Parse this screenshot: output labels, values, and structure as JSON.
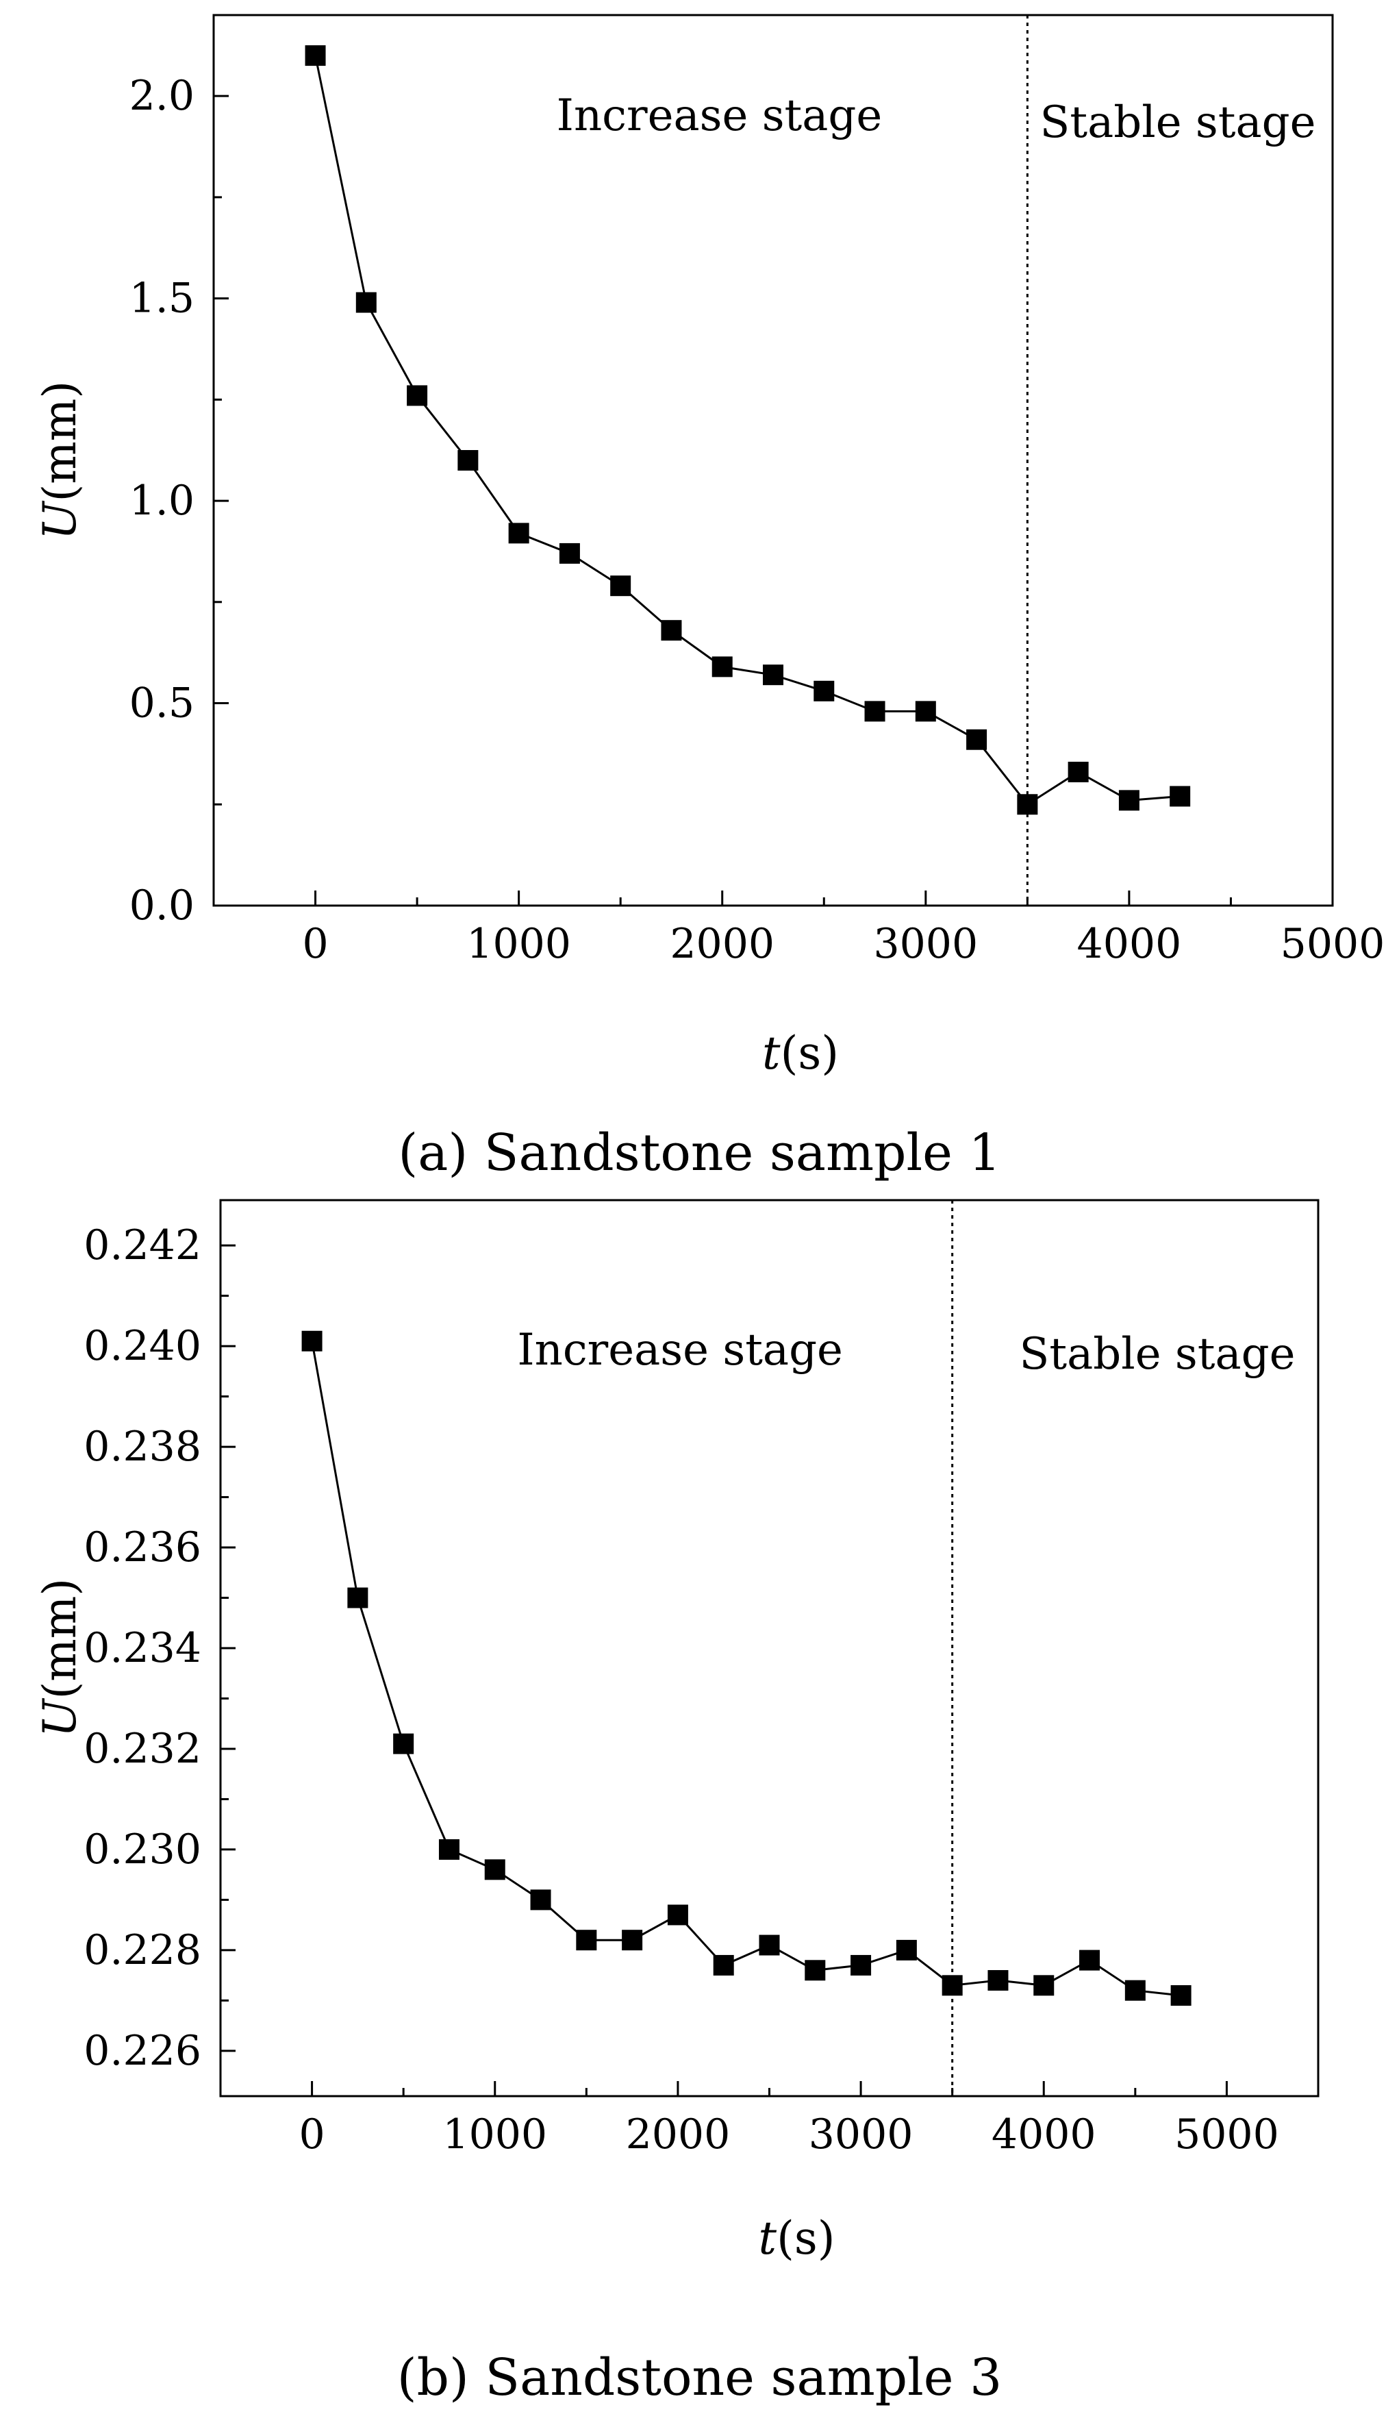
{
  "chart_data": [
    {
      "type": "line",
      "marker": "square",
      "caption": "(a) Sandstone sample 1",
      "xlabel": "t(s)",
      "xlabel_var": "t",
      "xlabel_unit": "(s)",
      "ylabel": "U(mm)",
      "ylabel_var": "U",
      "ylabel_unit": "(mm)",
      "xlim": [
        -500,
        5000
      ],
      "ylim": [
        0.0,
        2.2
      ],
      "xticks": [
        0,
        1000,
        2000,
        3000,
        4000,
        5000
      ],
      "xtick_labels": [
        "0",
        "1000",
        "2000",
        "3000",
        "4000",
        "5000"
      ],
      "yticks": [
        0.0,
        0.5,
        1.0,
        1.5,
        2.0
      ],
      "ytick_labels": [
        "0.0",
        "0.5",
        "1.0",
        "1.5",
        "2.0"
      ],
      "divider_x": 3500,
      "annotations": [
        "Increase stage",
        "Stable stage"
      ],
      "x": [
        0,
        250,
        500,
        750,
        1000,
        1250,
        1500,
        1750,
        2000,
        2250,
        2500,
        2750,
        3000,
        3250,
        3500,
        3750,
        4000,
        4250
      ],
      "y": [
        2.1,
        1.49,
        1.26,
        1.1,
        0.92,
        0.87,
        0.79,
        0.68,
        0.59,
        0.57,
        0.53,
        0.48,
        0.48,
        0.41,
        0.25,
        0.33,
        0.26,
        0.27
      ]
    },
    {
      "type": "line",
      "marker": "square",
      "caption": "(b) Sandstone sample 3",
      "xlabel": "t(s)",
      "xlabel_var": "t",
      "xlabel_unit": "(s)",
      "ylabel": "U(mm)",
      "ylabel_var": "U",
      "ylabel_unit": "(mm)",
      "xlim": [
        -500,
        5500
      ],
      "ylim": [
        0.2251,
        0.2429
      ],
      "xticks": [
        0,
        1000,
        2000,
        3000,
        4000,
        5000
      ],
      "xtick_labels": [
        "0",
        "1000",
        "2000",
        "3000",
        "4000",
        "5000"
      ],
      "yticks": [
        0.226,
        0.228,
        0.23,
        0.232,
        0.234,
        0.236,
        0.238,
        0.24,
        0.242
      ],
      "ytick_labels": [
        "0.226",
        "0.228",
        "0.230",
        "0.232",
        "0.234",
        "0.236",
        "0.238",
        "0.240",
        "0.242"
      ],
      "divider_x": 3500,
      "annotations": [
        "Increase stage",
        "Stable stage"
      ],
      "x": [
        0,
        250,
        500,
        750,
        1000,
        1250,
        1500,
        1750,
        2000,
        2250,
        2500,
        2750,
        3000,
        3250,
        3500,
        3750,
        4000,
        4250,
        4500,
        4750
      ],
      "y": [
        0.2401,
        0.235,
        0.2321,
        0.23,
        0.2296,
        0.229,
        0.2282,
        0.2282,
        0.2287,
        0.2277,
        0.2281,
        0.2276,
        0.2277,
        0.228,
        0.2273,
        0.2274,
        0.2273,
        0.2278,
        0.2272,
        0.2271
      ]
    }
  ]
}
